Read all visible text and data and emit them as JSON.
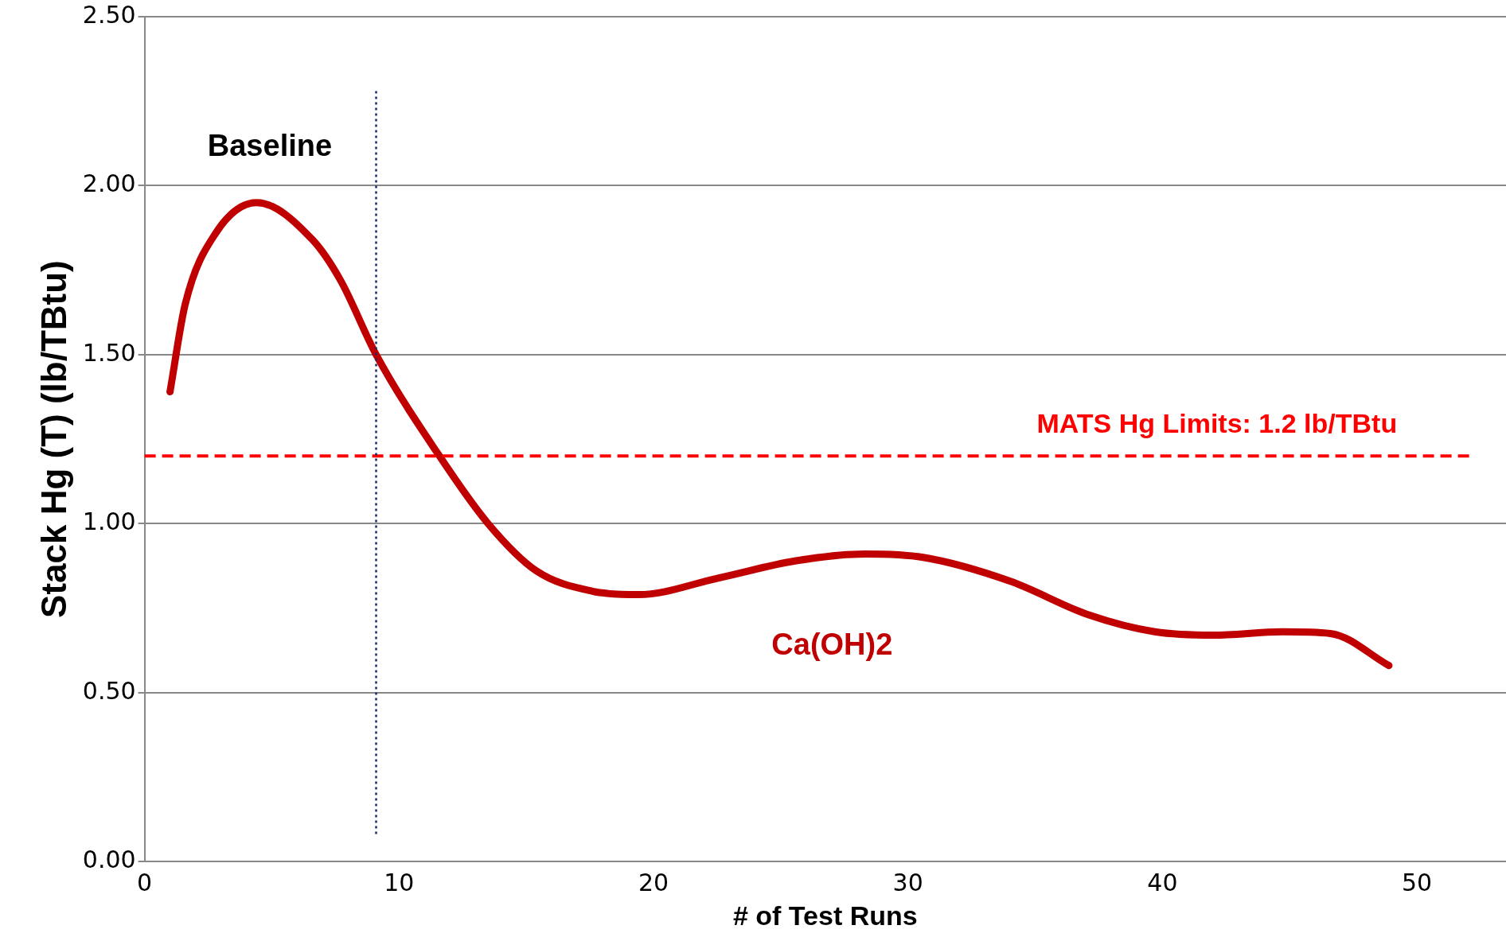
{
  "chart_data": {
    "type": "line",
    "xlabel": "# of Test Runs",
    "ylabel": "Stack Hg (T) (lb/TBtu)",
    "x": [
      1.0,
      1.6,
      2.8,
      4.4,
      6.6,
      7.7,
      9.1,
      11.5,
      13.5,
      15.4,
      17.6,
      19.4,
      22.6,
      25.6,
      28.3,
      30.6,
      34.0,
      37.1,
      39.7,
      42.0,
      44.7,
      46.6,
      48.9
    ],
    "series": [
      {
        "color": "#c00000",
        "values": [
          1.39,
          1.65,
          1.86,
          1.95,
          1.84,
          1.72,
          1.5,
          1.21,
          1.0,
          0.86,
          0.8,
          0.79,
          0.84,
          0.89,
          0.91,
          0.9,
          0.83,
          0.73,
          0.68,
          0.67,
          0.68,
          0.675,
          0.58
        ]
      }
    ],
    "xlim": [
      0,
      53.5
    ],
    "xticks": [
      0,
      10,
      20,
      30,
      40,
      50
    ],
    "ylim": [
      0,
      2.5
    ],
    "yticks": [
      {
        "value": 0,
        "label": "0.00"
      },
      {
        "value": 0.5,
        "label": "0.50"
      },
      {
        "value": 1,
        "label": "1.00"
      },
      {
        "value": 1.5,
        "label": "1.50"
      },
      {
        "value": 2,
        "label": "2.00"
      },
      {
        "value": 2.5,
        "label": "2.50"
      }
    ],
    "grid": "y",
    "marker": "none",
    "line_style": "solid",
    "ref_lines": [
      {
        "axis": "y",
        "value": 1.2,
        "label": "MATS Hg Limits: 1.2 lb/TBtu",
        "color": "#ff0000",
        "line_style": "dashed"
      },
      {
        "axis": "x",
        "value": 9.1,
        "color": "#1f2a6b",
        "line_style": "dotted"
      }
    ],
    "annotations": [
      "Baseline",
      "Ca(OH)2"
    ]
  }
}
